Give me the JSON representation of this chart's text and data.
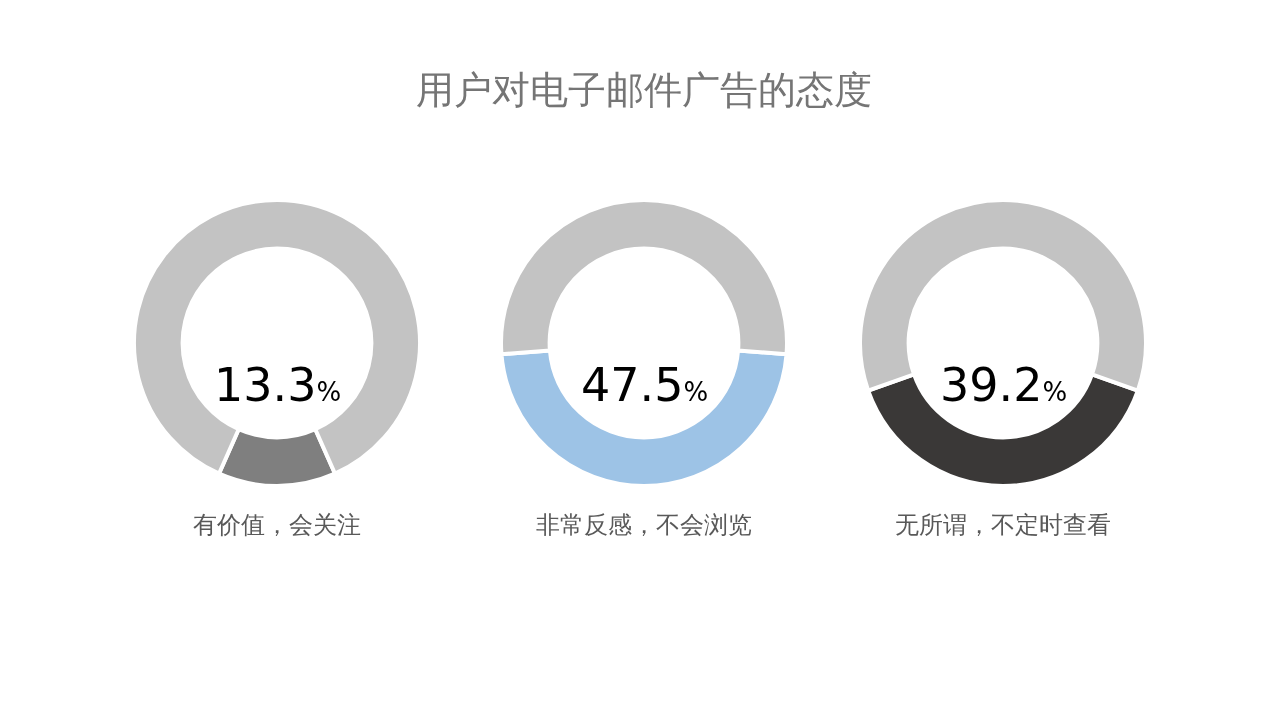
{
  "chart_data": [
    {
      "type": "donut",
      "categories": [
        "有价值，会关注",
        null
      ],
      "values": [
        13.3,
        86.7
      ],
      "colors": [
        "#7f7f7f",
        "#c3c3c3"
      ],
      "value_labels": [
        "13.3%",
        null
      ]
    },
    {
      "type": "donut",
      "title": "用户对电子邮件广告的态度",
      "categories": [
        "非常反感，不会浏览",
        null
      ],
      "values": [
        47.5,
        52.5
      ],
      "colors": [
        "#9dc3e6",
        "#c3c3c3"
      ],
      "value_labels": [
        "47.5%",
        null
      ]
    },
    {
      "type": "donut",
      "categories": [
        "无所谓，不定时查看",
        null
      ],
      "values": [
        39.2,
        60.8
      ],
      "colors": [
        "#3a3837",
        "#c3c3c3"
      ],
      "value_labels": [
        "39.2%",
        null
      ]
    }
  ]
}
